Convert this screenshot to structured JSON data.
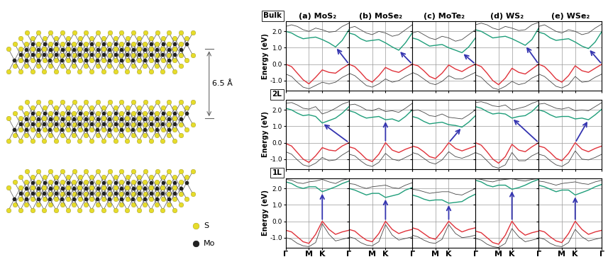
{
  "structure": {
    "interlayer_label": "6.5 Å",
    "atoms": [
      {
        "label": "S",
        "color": "#e6dc2a"
      },
      {
        "label": "Mo",
        "color": "#222222"
      }
    ]
  },
  "chart_data": {
    "type": "line",
    "grid": true,
    "columns": [
      "(a) MoS₂",
      "(b) MoSe₂",
      "(c) MoTe₂",
      "(d) WS₂",
      "(e) WSe₂"
    ],
    "rows": [
      "Bulk",
      "2L",
      "1L"
    ],
    "ylabel": "Energy (eV)",
    "xlim": [
      0,
      2.732
    ],
    "xticks": [
      {
        "value": 0,
        "label": "Γ"
      },
      {
        "value": 1.0,
        "label": "M"
      },
      {
        "value": 1.577,
        "label": "K"
      },
      {
        "value": 2.732,
        "label": "Γ"
      }
    ],
    "ylim": [
      -1.6,
      2.6
    ],
    "yticks": [
      -1.0,
      0.0,
      1.0,
      2.0
    ],
    "style": {
      "valence": {
        "color": "#e0323a"
      },
      "conduction": {
        "color": "#1f9e7a"
      },
      "arrow": {
        "color": "#3434b0"
      },
      "bands": {
        "color": "#444444"
      }
    },
    "k": [
      0,
      0.25,
      0.5,
      0.75,
      1.0,
      1.29,
      1.577,
      1.87,
      2.15,
      2.44,
      2.732
    ],
    "panels": [
      [
        {
          "valence": [
            0.0,
            -0.15,
            -0.55,
            -0.95,
            -1.2,
            -0.8,
            -0.35,
            -0.5,
            -0.55,
            -0.25,
            0.0
          ],
          "conduction": [
            2.0,
            1.9,
            1.7,
            1.55,
            1.6,
            1.65,
            1.5,
            1.3,
            1.05,
            1.45,
            2.1
          ],
          "bands": [
            [
              -0.6,
              -0.75,
              -1.1,
              -1.4,
              -1.5,
              -1.3,
              -1.1,
              -1.2,
              -1.1,
              -0.8,
              -0.6
            ],
            [
              2.3,
              2.4,
              2.3,
              2.1,
              2.0,
              2.2,
              2.1,
              1.95,
              2.0,
              2.3,
              2.5
            ]
          ],
          "arrow": {
            "from": [
              2.732,
              0.0
            ],
            "to": [
              2.15,
              1.05
            ]
          }
        },
        {
          "valence": [
            0.0,
            -0.15,
            -0.5,
            -0.9,
            -1.1,
            -0.7,
            -0.2,
            -0.4,
            -0.5,
            -0.25,
            0.0
          ],
          "conduction": [
            1.9,
            1.8,
            1.55,
            1.4,
            1.45,
            1.5,
            1.3,
            1.05,
            0.85,
            1.3,
            1.9
          ],
          "bands": [
            [
              -0.55,
              -0.7,
              -1.0,
              -1.3,
              -1.4,
              -1.2,
              -0.9,
              -1.1,
              -1.0,
              -0.75,
              -0.55
            ],
            [
              2.2,
              2.3,
              2.1,
              1.9,
              1.8,
              2.0,
              1.9,
              1.7,
              1.8,
              2.1,
              2.4
            ]
          ],
          "arrow": {
            "from": [
              2.732,
              0.0
            ],
            "to": [
              2.15,
              0.85
            ]
          }
        },
        {
          "valence": [
            0.0,
            -0.1,
            -0.4,
            -0.75,
            -0.9,
            -0.55,
            -0.05,
            -0.3,
            -0.45,
            -0.2,
            0.0
          ],
          "conduction": [
            1.6,
            1.5,
            1.3,
            1.1,
            1.15,
            1.2,
            1.0,
            0.85,
            0.7,
            1.05,
            1.6
          ],
          "bands": [
            [
              -0.5,
              -0.65,
              -0.9,
              -1.15,
              -1.25,
              -1.05,
              -0.7,
              -0.9,
              -0.9,
              -0.7,
              -0.5
            ],
            [
              1.9,
              2.0,
              1.8,
              1.6,
              1.5,
              1.7,
              1.6,
              1.4,
              1.5,
              1.8,
              2.1
            ]
          ],
          "arrow": {
            "from": [
              2.732,
              0.0
            ],
            "to": [
              2.15,
              0.7
            ]
          }
        },
        {
          "valence": [
            0.0,
            -0.15,
            -0.55,
            -1.0,
            -1.25,
            -0.85,
            -0.25,
            -0.5,
            -0.6,
            -0.3,
            0.0
          ],
          "conduction": [
            2.1,
            2.0,
            1.8,
            1.6,
            1.65,
            1.7,
            1.55,
            1.35,
            1.15,
            1.5,
            2.2
          ],
          "bands": [
            [
              -0.65,
              -0.8,
              -1.15,
              -1.45,
              -1.55,
              -1.35,
              -1.05,
              -1.25,
              -1.15,
              -0.85,
              -0.65
            ],
            [
              2.4,
              2.5,
              2.4,
              2.2,
              2.1,
              2.3,
              2.2,
              2.05,
              2.1,
              2.4,
              2.55
            ]
          ],
          "arrow": {
            "from": [
              2.732,
              0.0
            ],
            "to": [
              2.15,
              1.15
            ]
          }
        },
        {
          "valence": [
            0.0,
            -0.15,
            -0.5,
            -0.9,
            -1.1,
            -0.7,
            -0.1,
            -0.4,
            -0.5,
            -0.25,
            0.0
          ],
          "conduction": [
            1.95,
            1.85,
            1.6,
            1.45,
            1.5,
            1.55,
            1.35,
            1.1,
            0.95,
            1.35,
            2.0
          ],
          "bands": [
            [
              -0.6,
              -0.75,
              -1.05,
              -1.35,
              -1.45,
              -1.25,
              -0.75,
              -1.1,
              -1.05,
              -0.8,
              -0.6
            ],
            [
              2.3,
              2.4,
              2.2,
              2.0,
              1.9,
              2.1,
              2.0,
              1.8,
              1.9,
              2.2,
              2.45
            ]
          ],
          "arrow": {
            "from": [
              2.732,
              0.0
            ],
            "to": [
              2.15,
              0.95
            ]
          }
        }
      ],
      [
        {
          "valence": [
            -0.05,
            -0.2,
            -0.6,
            -1.0,
            -1.2,
            -0.8,
            -0.3,
            -0.45,
            -0.5,
            -0.2,
            0.0
          ],
          "conduction": [
            2.1,
            2.0,
            1.8,
            1.65,
            1.7,
            1.6,
            1.2,
            1.35,
            1.5,
            1.8,
            2.2
          ],
          "bands": [
            [
              -0.55,
              -0.7,
              -1.05,
              -1.35,
              -1.45,
              -1.25,
              -0.9,
              -1.1,
              -1.05,
              -0.75,
              -0.5
            ],
            [
              2.4,
              2.45,
              2.3,
              2.1,
              2.05,
              2.2,
              1.75,
              1.9,
              2.1,
              2.35,
              2.5
            ]
          ],
          "arrow": {
            "from": [
              2.732,
              0.0
            ],
            "to": [
              1.577,
              1.2
            ]
          }
        },
        {
          "valence": [
            -0.25,
            -0.35,
            -0.65,
            -1.0,
            -1.15,
            -0.7,
            0.0,
            -0.45,
            -0.6,
            -0.4,
            -0.25
          ],
          "conduction": [
            1.95,
            1.85,
            1.65,
            1.5,
            1.55,
            1.6,
            1.4,
            1.45,
            1.3,
            1.6,
            2.0
          ],
          "bands": [
            [
              -0.7,
              -0.8,
              -1.1,
              -1.35,
              -1.45,
              -1.2,
              -0.65,
              -1.0,
              -1.1,
              -0.9,
              -0.7
            ],
            [
              2.3,
              2.35,
              2.2,
              2.0,
              1.95,
              2.1,
              1.9,
              1.95,
              1.85,
              2.1,
              2.4
            ]
          ],
          "arrow": {
            "from": [
              1.577,
              0.0
            ],
            "to": [
              1.577,
              1.4
            ]
          }
        },
        {
          "valence": [
            -0.2,
            -0.3,
            -0.55,
            -0.85,
            -0.95,
            -0.55,
            0.0,
            -0.35,
            -0.5,
            -0.35,
            -0.2
          ],
          "conduction": [
            1.6,
            1.5,
            1.3,
            1.15,
            1.2,
            1.25,
            1.1,
            1.05,
            0.95,
            1.25,
            1.65
          ],
          "bands": [
            [
              -0.6,
              -0.7,
              -0.95,
              -1.2,
              -1.3,
              -1.05,
              -0.55,
              -0.85,
              -0.95,
              -0.8,
              -0.6
            ],
            [
              1.95,
              2.0,
              1.85,
              1.65,
              1.6,
              1.75,
              1.55,
              1.5,
              1.45,
              1.7,
              2.0
            ]
          ],
          "arrow": {
            "from": [
              1.577,
              0.0
            ],
            "to": [
              2.15,
              0.95
            ]
          }
        },
        {
          "valence": [
            0.0,
            -0.15,
            -0.55,
            -1.0,
            -1.25,
            -0.85,
            -0.1,
            -0.45,
            -0.55,
            -0.25,
            0.0
          ],
          "conduction": [
            2.2,
            2.1,
            1.9,
            1.75,
            1.8,
            1.75,
            1.5,
            1.6,
            1.65,
            1.9,
            2.3
          ],
          "bands": [
            [
              -0.6,
              -0.75,
              -1.1,
              -1.45,
              -1.55,
              -1.35,
              -0.6,
              -1.1,
              -1.1,
              -0.8,
              -0.6
            ],
            [
              2.45,
              2.5,
              2.4,
              2.25,
              2.2,
              2.3,
              2.0,
              2.1,
              2.2,
              2.4,
              2.55
            ]
          ],
          "arrow": {
            "from": [
              2.732,
              0.0
            ],
            "to": [
              1.577,
              1.5
            ]
          }
        },
        {
          "valence": [
            -0.2,
            -0.3,
            -0.6,
            -0.95,
            -1.1,
            -0.65,
            0.0,
            -0.4,
            -0.55,
            -0.35,
            -0.2
          ],
          "conduction": [
            2.0,
            1.9,
            1.7,
            1.55,
            1.6,
            1.6,
            1.45,
            1.5,
            1.4,
            1.7,
            2.05
          ],
          "bands": [
            [
              -0.7,
              -0.8,
              -1.1,
              -1.35,
              -1.45,
              -1.2,
              -0.5,
              -1.0,
              -1.05,
              -0.9,
              -0.7
            ],
            [
              2.35,
              2.4,
              2.25,
              2.1,
              2.05,
              2.15,
              1.95,
              2.0,
              1.95,
              2.2,
              2.45
            ]
          ],
          "arrow": {
            "from": [
              1.577,
              0.0
            ],
            "to": [
              2.15,
              1.4
            ]
          }
        }
      ],
      [
        {
          "valence": [
            -0.55,
            -0.65,
            -0.95,
            -1.25,
            -1.35,
            -0.8,
            0.0,
            -0.5,
            -0.8,
            -0.65,
            -0.55
          ],
          "conduction": [
            2.4,
            2.3,
            2.1,
            2.0,
            2.1,
            2.1,
            1.8,
            1.95,
            2.1,
            2.3,
            2.45
          ],
          "bands": [
            [
              -1.0,
              -1.1,
              -1.35,
              -1.5,
              -1.55,
              -1.3,
              -0.15,
              -0.8,
              -1.2,
              -1.1,
              -1.0
            ],
            [
              2.55,
              2.5,
              2.35,
              2.3,
              2.4,
              2.45,
              2.55,
              2.4,
              2.3,
              2.5,
              2.6
            ]
          ],
          "arrow": {
            "from": [
              1.577,
              0.0
            ],
            "to": [
              1.577,
              1.8
            ]
          }
        },
        {
          "valence": [
            -0.5,
            -0.6,
            -0.9,
            -1.15,
            -1.25,
            -0.75,
            0.0,
            -0.5,
            -0.75,
            -0.6,
            -0.5
          ],
          "conduction": [
            2.0,
            1.9,
            1.75,
            1.6,
            1.7,
            1.7,
            1.45,
            1.55,
            1.65,
            1.9,
            2.05
          ],
          "bands": [
            [
              -0.95,
              -1.05,
              -1.3,
              -1.45,
              -1.5,
              -1.25,
              -0.2,
              -0.85,
              -1.15,
              -1.05,
              -0.95
            ],
            [
              2.3,
              2.25,
              2.1,
              2.0,
              2.1,
              2.15,
              2.2,
              2.05,
              2.0,
              2.2,
              2.35
            ]
          ],
          "arrow": {
            "from": [
              1.577,
              0.0
            ],
            "to": [
              1.577,
              1.45
            ]
          }
        },
        {
          "valence": [
            -0.4,
            -0.5,
            -0.75,
            -1.0,
            -1.1,
            -0.6,
            0.0,
            -0.4,
            -0.65,
            -0.5,
            -0.4
          ],
          "conduction": [
            1.6,
            1.5,
            1.35,
            1.25,
            1.3,
            1.3,
            1.1,
            1.15,
            1.2,
            1.45,
            1.65
          ],
          "bands": [
            [
              -0.85,
              -0.95,
              -1.15,
              -1.3,
              -1.35,
              -1.1,
              -0.2,
              -0.75,
              -1.0,
              -0.95,
              -0.85
            ],
            [
              1.95,
              1.9,
              1.8,
              1.7,
              1.75,
              1.8,
              1.8,
              1.65,
              1.6,
              1.8,
              2.0
            ]
          ],
          "arrow": {
            "from": [
              1.577,
              0.0
            ],
            "to": [
              1.577,
              1.1
            ]
          }
        },
        {
          "valence": [
            -0.6,
            -0.7,
            -1.0,
            -1.3,
            -1.4,
            -0.85,
            0.0,
            -0.55,
            -0.85,
            -0.7,
            -0.6
          ],
          "conduction": [
            2.5,
            2.4,
            2.2,
            2.1,
            2.2,
            2.2,
            1.95,
            2.05,
            2.2,
            2.4,
            2.55
          ],
          "bands": [
            [
              -1.05,
              -1.15,
              -1.4,
              -1.55,
              -1.6,
              -1.35,
              -0.45,
              -0.95,
              -1.25,
              -1.15,
              -1.05
            ],
            [
              2.6,
              2.55,
              2.45,
              2.4,
              2.5,
              2.55,
              2.6,
              2.5,
              2.45,
              2.55,
              2.6
            ]
          ],
          "arrow": {
            "from": [
              1.577,
              0.0
            ],
            "to": [
              1.577,
              1.95
            ]
          }
        },
        {
          "valence": [
            -0.55,
            -0.65,
            -0.95,
            -1.2,
            -1.3,
            -0.75,
            0.0,
            -0.5,
            -0.8,
            -0.65,
            -0.55
          ],
          "conduction": [
            2.2,
            2.1,
            1.95,
            1.8,
            1.9,
            1.9,
            1.6,
            1.75,
            1.9,
            2.1,
            2.25
          ],
          "bands": [
            [
              -1.0,
              -1.1,
              -1.35,
              -1.5,
              -1.55,
              -1.3,
              -0.5,
              -0.95,
              -1.2,
              -1.1,
              -1.0
            ],
            [
              2.45,
              2.4,
              2.3,
              2.2,
              2.3,
              2.35,
              2.4,
              2.3,
              2.25,
              2.4,
              2.5
            ]
          ],
          "arrow": {
            "from": [
              1.577,
              0.0
            ],
            "to": [
              1.577,
              1.6
            ]
          }
        }
      ]
    ]
  }
}
